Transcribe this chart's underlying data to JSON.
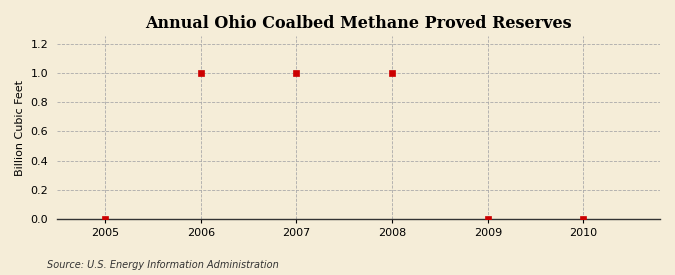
{
  "title": "Annual Ohio Coalbed Methane Proved Reserves",
  "ylabel": "Billion Cubic Feet",
  "source": "Source: U.S. Energy Information Administration",
  "x_data": [
    2005,
    2006,
    2007,
    2008,
    2009,
    2010
  ],
  "y_data": [
    0.0,
    1.0,
    1.0,
    1.0,
    0.0,
    0.0
  ],
  "xlim": [
    2004.5,
    2010.8
  ],
  "ylim": [
    0.0,
    1.25
  ],
  "yticks": [
    0.0,
    0.2,
    0.4,
    0.6,
    0.8,
    1.0,
    1.2
  ],
  "xticks": [
    2005,
    2006,
    2007,
    2008,
    2009,
    2010
  ],
  "background_color": "#f5edd8",
  "plot_bg_color": "#f5edd8",
  "grid_color": "#aaaaaa",
  "marker_color": "#cc0000",
  "marker_style": "s",
  "marker_size": 4,
  "title_fontsize": 11.5,
  "label_fontsize": 8,
  "tick_fontsize": 8,
  "source_fontsize": 7
}
